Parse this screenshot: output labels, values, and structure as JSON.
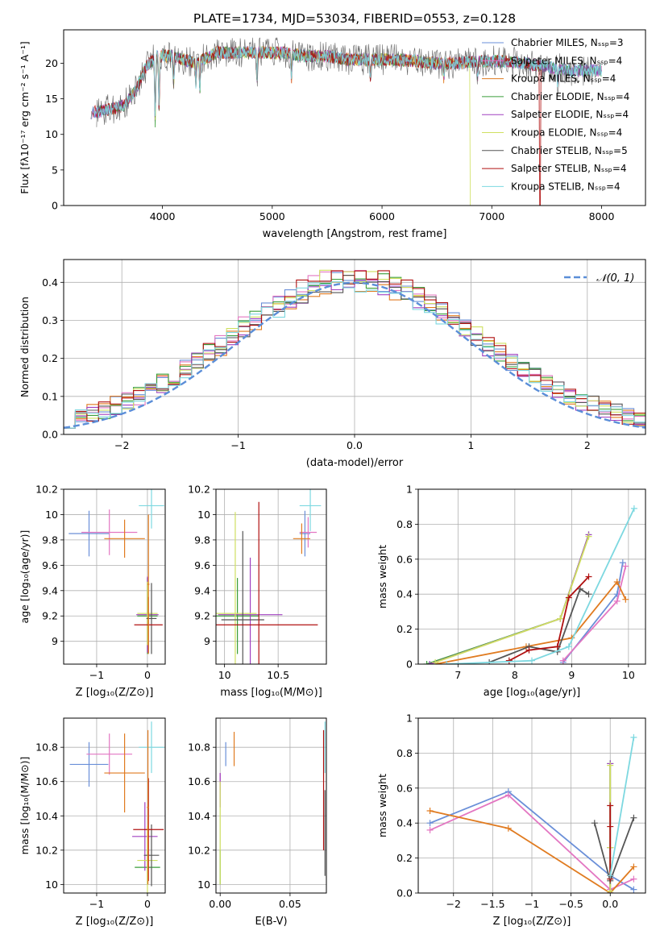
{
  "figure_title": "PLATE=1734, MJD=53034, FIBERID=0553, z=0.128",
  "colors": {
    "chabrier_miles": "#6a8fd8",
    "salpeter_miles": "#e377c2",
    "kroupa_miles": "#e07b20",
    "chabrier_elodie": "#3a9e3a",
    "salpeter_elodie": "#a040c0",
    "kroupa_elodie": "#cfe060",
    "chabrier_stelib": "#555555",
    "salpeter_stelib": "#b01010",
    "kroupa_stelib": "#7dd8e0",
    "normal_curve": "#5b8ed8",
    "grid": "#b0b0b0"
  },
  "chart_data": [
    {
      "id": "spectrum",
      "type": "line",
      "xlabel": "wavelength [Angstrom, rest frame]",
      "ylabel": "Flux [fλ10⁻¹⁷ erg cm⁻² s⁻¹ A⁻¹]",
      "xlim": [
        3100,
        8400
      ],
      "ylim": [
        0,
        24.7
      ],
      "xticks": [
        4000,
        5000,
        6000,
        7000,
        8000
      ],
      "yticks": [
        0,
        5,
        10,
        15,
        20
      ],
      "grid": false,
      "legend_position": "top-right",
      "legend": [
        "Chabrier MILES, Nₛₛₚ=3",
        "Salpeter MILES, Nₛₛₚ=4",
        "Kroupa MILES, Nₛₛₚ=4",
        "Chabrier ELODIE, Nₛₛₚ=4",
        "Salpeter ELODIE, Nₛₛₚ=4",
        "Kroupa ELODIE, Nₛₛₚ=4",
        "Chabrier STELIB, Nₛₛₚ=5",
        "Salpeter STELIB, Nₛₛₚ=4",
        "Kroupa STELIB, Nₛₛₚ=4"
      ],
      "continuum": [
        [
          3350,
          13.0
        ],
        [
          3500,
          13.5
        ],
        [
          3650,
          14.0
        ],
        [
          3750,
          16.0
        ],
        [
          3850,
          19.5
        ],
        [
          3950,
          21.0
        ],
        [
          4100,
          21.0
        ],
        [
          4300,
          20.0
        ],
        [
          4500,
          21.5
        ],
        [
          4700,
          21.5
        ],
        [
          4900,
          21.5
        ],
        [
          5100,
          21.5
        ],
        [
          5300,
          21.0
        ],
        [
          5500,
          21.0
        ],
        [
          5700,
          20.5
        ],
        [
          5900,
          20.5
        ],
        [
          6100,
          20.5
        ],
        [
          6300,
          20.3
        ],
        [
          6500,
          20.0
        ],
        [
          6700,
          20.0
        ],
        [
          6900,
          20.3
        ],
        [
          7100,
          20.3
        ],
        [
          7300,
          20.0
        ],
        [
          7500,
          19.5
        ],
        [
          7700,
          19.0
        ],
        [
          7900,
          19.0
        ],
        [
          8100,
          19.0
        ]
      ],
      "absorption_lines": [
        [
          3934,
          9.0
        ],
        [
          3969,
          7.0
        ],
        [
          4102,
          4.0
        ],
        [
          4304,
          3.0
        ],
        [
          4341,
          4.0
        ],
        [
          4861,
          4.0
        ],
        [
          5175,
          3.5
        ],
        [
          5893,
          2.5
        ],
        [
          6563,
          2.0
        ],
        [
          6870,
          2.5
        ],
        [
          7600,
          2.0
        ]
      ],
      "model_ranges": [
        [
          3350,
          8000
        ],
        [
          3350,
          8000
        ],
        [
          3550,
          7000
        ],
        [
          3400,
          8000
        ],
        [
          3350,
          8000
        ],
        [
          3930,
          6820
        ],
        [
          3400,
          8000
        ],
        [
          3350,
          7450
        ],
        [
          3350,
          8000
        ]
      ],
      "dropouts": [
        [
          3530,
          "kroupa_miles"
        ],
        [
          3915,
          "kroupa_elodie"
        ],
        [
          6810,
          "kroupa_elodie"
        ],
        [
          7440,
          "salpeter_stelib"
        ]
      ]
    },
    {
      "id": "residuals",
      "type": "bar",
      "xlabel": "(data-model)/error",
      "ylabel": "Normed distribution",
      "xlim": [
        -2.5,
        2.5
      ],
      "ylim": [
        0,
        0.46
      ],
      "xticks": [
        -2,
        -1,
        0,
        1,
        2
      ],
      "yticks": [
        0.0,
        0.1,
        0.2,
        0.3,
        0.4
      ],
      "grid": true,
      "legend_position": "top-right",
      "legend": [
        "𝒩(0, 1)"
      ],
      "bin_width": 0.1,
      "bin_start": -2.5,
      "series_offsets": [
        0.0,
        0.012,
        -0.01,
        0.006,
        -0.014,
        0.015,
        -0.006,
        0.01,
        -0.012
      ],
      "normal": {
        "mu": 0,
        "sigma": 1
      }
    },
    {
      "id": "age_vs_Z",
      "type": "scatter",
      "xlabel": "Z [log₁₀(Z/Z⊙)]",
      "ylabel": "age  [log₁₀(age/yr)]",
      "xlim": [
        -1.65,
        0.35
      ],
      "ylim": [
        8.82,
        10.2
      ],
      "xticks": [
        -1,
        0
      ],
      "yticks": [
        9.0,
        9.2,
        9.4,
        9.6,
        9.8,
        10.0,
        10.2
      ],
      "grid": true,
      "points": [
        {
          "c": "chabrier_miles",
          "x": -1.15,
          "y": 9.85,
          "xerr": 0.4,
          "yerr": 0.18
        },
        {
          "c": "salpeter_miles",
          "x": -0.75,
          "y": 9.86,
          "xerr": 0.55,
          "yerr": 0.18
        },
        {
          "c": "kroupa_miles",
          "x": -0.45,
          "y": 9.81,
          "xerr": 0.4,
          "yerr": 0.15
        },
        {
          "c": "chabrier_elodie",
          "x": 0.0,
          "y": 9.2,
          "xerr": 0.2,
          "yerr": 0.3
        },
        {
          "c": "salpeter_elodie",
          "x": 0.0,
          "y": 9.21,
          "xerr": 0.22,
          "yerr": 0.3
        },
        {
          "c": "kroupa_elodie",
          "x": 0.0,
          "y": 9.22,
          "xerr": 0.2,
          "yerr": 0.25
        },
        {
          "c": "chabrier_stelib",
          "x": 0.08,
          "y": 9.18,
          "xerr": 0.1,
          "yerr": 0.28
        },
        {
          "c": "salpeter_stelib",
          "x": 0.02,
          "y": 9.13,
          "xerr": 0.28,
          "yerr": 0.22
        },
        {
          "c": "kroupa_stelib",
          "x": 0.08,
          "y": 10.07,
          "xerr": 0.25,
          "yerr": 0.18
        },
        {
          "c": "kroupa_miles",
          "x": 0.02,
          "y": 9.45,
          "xerr": 0.02,
          "yerr": 0.55
        }
      ]
    },
    {
      "id": "age_vs_mass",
      "type": "scatter",
      "xlabel": "mass [log₁₀(M/M⊙)]",
      "ylabel": "",
      "xlim": [
        9.92,
        10.95
      ],
      "ylim": [
        8.82,
        10.2
      ],
      "xticks": [
        10.0,
        10.5
      ],
      "yticks": [
        9.0,
        9.2,
        9.4,
        9.6,
        9.8,
        10.0,
        10.2
      ],
      "grid": true,
      "points": [
        {
          "c": "chabrier_miles",
          "x": 10.75,
          "y": 9.85,
          "xerr": 0.05,
          "yerr": 0.18
        },
        {
          "c": "salpeter_miles",
          "x": 10.78,
          "y": 9.86,
          "xerr": 0.08,
          "yerr": 0.12
        },
        {
          "c": "kroupa_miles",
          "x": 10.72,
          "y": 9.81,
          "xerr": 0.08,
          "yerr": 0.12
        },
        {
          "c": "chabrier_elodie",
          "x": 10.12,
          "y": 9.2,
          "xerr": 0.2,
          "yerr": 0.3
        },
        {
          "c": "salpeter_elodie",
          "x": 10.24,
          "y": 9.21,
          "xerr": 0.3,
          "yerr": 0.45
        },
        {
          "c": "kroupa_elodie",
          "x": 10.1,
          "y": 9.22,
          "xerr": 0.2,
          "yerr": 0.8
        },
        {
          "c": "chabrier_stelib",
          "x": 10.17,
          "y": 9.17,
          "xerr": 0.2,
          "yerr": 0.7
        },
        {
          "c": "salpeter_stelib",
          "x": 10.32,
          "y": 9.13,
          "xerr": 0.55,
          "yerr": 0.97
        },
        {
          "c": "kroupa_stelib",
          "x": 10.8,
          "y": 10.07,
          "xerr": 0.1,
          "yerr": 0.2
        }
      ]
    },
    {
      "id": "mass_weight_vs_age",
      "type": "line",
      "xlabel": "age  [log₁₀(age/yr)]",
      "ylabel": "mass weight",
      "xlim": [
        6.3,
        10.3
      ],
      "ylim": [
        0,
        1
      ],
      "xticks": [
        7,
        8,
        9,
        10
      ],
      "yticks": [
        0.0,
        0.2,
        0.4,
        0.6,
        0.8,
        1.0
      ],
      "grid": true,
      "series": [
        {
          "c": "chabrier_miles",
          "x": [
            8.85,
            9.8,
            9.9
          ],
          "y": [
            0.01,
            0.4,
            0.58
          ]
        },
        {
          "c": "salpeter_miles",
          "x": [
            8.85,
            9.8,
            9.95
          ],
          "y": [
            0.02,
            0.36,
            0.56
          ]
        },
        {
          "c": "kroupa_miles",
          "x": [
            6.6,
            8.2,
            9.0,
            9.8,
            9.95
          ],
          "y": [
            0.0,
            0.1,
            0.15,
            0.47,
            0.37
          ]
        },
        {
          "c": "chabrier_elodie",
          "x": [
            6.45,
            8.8,
            9.3
          ],
          "y": [
            0.0,
            0.26,
            0.74
          ]
        },
        {
          "c": "salpeter_elodie",
          "x": [
            6.5,
            8.8,
            9.3
          ],
          "y": [
            0.0,
            0.26,
            0.74
          ]
        },
        {
          "c": "kroupa_elodie",
          "x": [
            6.6,
            8.8,
            9.3
          ],
          "y": [
            0.01,
            0.26,
            0.73
          ]
        },
        {
          "c": "chabrier_stelib",
          "x": [
            7.55,
            8.25,
            8.75,
            9.15,
            9.3
          ],
          "y": [
            0.01,
            0.1,
            0.07,
            0.43,
            0.4
          ]
        },
        {
          "c": "salpeter_stelib",
          "x": [
            7.9,
            8.25,
            8.75,
            8.95,
            9.3
          ],
          "y": [
            0.02,
            0.08,
            0.1,
            0.38,
            0.5
          ]
        },
        {
          "c": "kroupa_stelib",
          "x": [
            6.8,
            8.3,
            8.95,
            10.1
          ],
          "y": [
            0.0,
            0.02,
            0.1,
            0.89
          ]
        }
      ]
    },
    {
      "id": "mass_vs_Z",
      "type": "scatter",
      "xlabel": "Z [log₁₀(Z/Z⊙)]",
      "ylabel": "mass [log₁₀(M/M⊙)]",
      "xlim": [
        -1.65,
        0.35
      ],
      "ylim": [
        9.95,
        10.97
      ],
      "xticks": [
        -1,
        0
      ],
      "yticks": [
        10.0,
        10.2,
        10.4,
        10.6,
        10.8
      ],
      "grid": true,
      "points": [
        {
          "c": "chabrier_miles",
          "x": -1.15,
          "y": 10.7,
          "xerr": 0.38,
          "yerr": 0.13
        },
        {
          "c": "salpeter_miles",
          "x": -0.75,
          "y": 10.76,
          "xerr": 0.45,
          "yerr": 0.12
        },
        {
          "c": "kroupa_miles",
          "x": -0.45,
          "y": 10.65,
          "xerr": 0.4,
          "yerr": 0.23
        },
        {
          "c": "chabrier_elodie",
          "x": 0.0,
          "y": 10.1,
          "xerr": 0.25,
          "yerr": 0.1
        },
        {
          "c": "salpeter_elodie",
          "x": -0.05,
          "y": 10.28,
          "xerr": 0.25,
          "yerr": 0.2
        },
        {
          "c": "kroupa_elodie",
          "x": 0.0,
          "y": 10.14,
          "xerr": 0.2,
          "yerr": 0.2
        },
        {
          "c": "chabrier_stelib",
          "x": 0.08,
          "y": 10.17,
          "xerr": 0.15,
          "yerr": 0.18
        },
        {
          "c": "salpeter_stelib",
          "x": 0.02,
          "y": 10.32,
          "xerr": 0.3,
          "yerr": 0.3
        },
        {
          "c": "kroupa_stelib",
          "x": 0.08,
          "y": 10.8,
          "xerr": 0.25,
          "yerr": 0.15
        },
        {
          "c": "kroupa_miles",
          "x": 0.01,
          "y": 10.45,
          "xerr": 0.02,
          "yerr": 0.45
        }
      ]
    },
    {
      "id": "mass_vs_ebv",
      "type": "scatter",
      "xlabel": "E(B-V)",
      "ylabel": "",
      "xlim": [
        -0.003,
        0.076
      ],
      "ylim": [
        9.95,
        10.97
      ],
      "xticks": [
        0.0,
        0.05
      ],
      "yticks": [
        10.0,
        10.2,
        10.4,
        10.6,
        10.8
      ],
      "grid": true,
      "points": [
        {
          "c": "chabrier_miles",
          "x": 0.004,
          "y": 10.76,
          "xerr": 0,
          "yerr": 0.07
        },
        {
          "c": "salpeter_miles",
          "x": 0.0,
          "y": 10.6,
          "xerr": 0,
          "yerr": 0.05
        },
        {
          "c": "kroupa_miles",
          "x": 0.01,
          "y": 10.79,
          "xerr": 0,
          "yerr": 0.1
        },
        {
          "c": "chabrier_elodie",
          "x": 0.0,
          "y": 10.1,
          "xerr": 0,
          "yerr": 0.1
        },
        {
          "c": "salpeter_elodie",
          "x": 0.0,
          "y": 10.55,
          "xerr": 0,
          "yerr": 0.1
        },
        {
          "c": "kroupa_elodie",
          "x": 0.0,
          "y": 10.3,
          "xerr": 0,
          "yerr": 0.3
        },
        {
          "c": "chabrier_stelib",
          "x": 0.075,
          "y": 10.3,
          "xerr": 0,
          "yerr": 0.25
        },
        {
          "c": "salpeter_stelib",
          "x": 0.074,
          "y": 10.55,
          "xerr": 0,
          "yerr": 0.35
        },
        {
          "c": "kroupa_stelib",
          "x": 0.075,
          "y": 10.8,
          "xerr": 0,
          "yerr": 0.15
        }
      ]
    },
    {
      "id": "mass_weight_vs_Z",
      "type": "line",
      "xlabel": "Z [log₁₀(Z/Z⊙)]",
      "ylabel": "mass weight",
      "xlim": [
        -2.45,
        0.45
      ],
      "ylim": [
        0,
        1
      ],
      "xticks": [
        -2.0,
        -1.5,
        -1.0,
        -0.5,
        0.0
      ],
      "yticks": [
        0.0,
        0.2,
        0.4,
        0.6,
        0.8,
        1.0
      ],
      "grid": true,
      "series": [
        {
          "c": "chabrier_miles",
          "x": [
            -2.3,
            -1.3,
            0.0,
            0.3
          ],
          "y": [
            0.4,
            0.58,
            0.1,
            0.02
          ]
        },
        {
          "c": "salpeter_miles",
          "x": [
            -2.3,
            -1.3,
            0.0,
            0.3
          ],
          "y": [
            0.36,
            0.56,
            0.02,
            0.08
          ]
        },
        {
          "c": "kroupa_miles",
          "x": [
            -2.3,
            -1.3,
            0.0,
            0.3
          ],
          "y": [
            0.47,
            0.37,
            0.0,
            0.15
          ]
        },
        {
          "c": "chabrier_elodie",
          "x": [
            0.0,
            0.0,
            0.0
          ],
          "y": [
            0.0,
            0.26,
            0.74
          ]
        },
        {
          "c": "salpeter_elodie",
          "x": [
            0.0,
            0.0,
            0.0
          ],
          "y": [
            0.0,
            0.26,
            0.74
          ]
        },
        {
          "c": "kroupa_elodie",
          "x": [
            0.0,
            0.0,
            0.0
          ],
          "y": [
            0.01,
            0.26,
            0.73
          ]
        },
        {
          "c": "chabrier_stelib",
          "x": [
            -0.2,
            0.0,
            0.3
          ],
          "y": [
            0.4,
            0.07,
            0.43
          ]
        },
        {
          "c": "salpeter_stelib",
          "x": [
            0.0,
            0.0,
            0.0,
            0.0
          ],
          "y": [
            0.08,
            0.38,
            0.5,
            0.1
          ]
        },
        {
          "c": "kroupa_stelib",
          "x": [
            0.0,
            0.3
          ],
          "y": [
            0.1,
            0.89
          ]
        }
      ]
    }
  ]
}
